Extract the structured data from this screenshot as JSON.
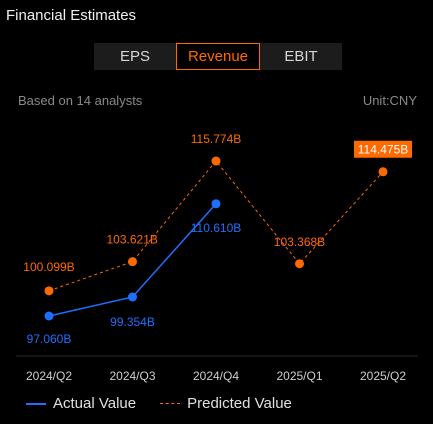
{
  "panel": {
    "title": "Financial Estimates"
  },
  "tabs": [
    {
      "label": "EPS",
      "active": false
    },
    {
      "label": "Revenue",
      "active": true
    },
    {
      "label": "EBIT",
      "active": false
    }
  ],
  "subheader": {
    "analysts": "Based on 14 analysts",
    "unit": "Unit:CNY"
  },
  "colors": {
    "actual": "#1f6fff",
    "predicted": "#ff6a00",
    "background": "#000000",
    "tab_bg": "#1c1c1c",
    "label_bg_highlight": "#ff6a00"
  },
  "chart_data": {
    "type": "line",
    "categories": [
      "2024/Q2",
      "2024/Q3",
      "2024/Q4",
      "2025/Q1",
      "2025/Q2"
    ],
    "series": [
      {
        "name": "Actual Value",
        "style": "solid",
        "values": [
          97.06,
          99.354,
          110.61,
          null,
          null
        ],
        "labels": [
          "97.060B",
          "99.354B",
          "110.610B",
          null,
          null
        ]
      },
      {
        "name": "Predicted Value",
        "style": "dashed",
        "values": [
          100.099,
          103.621,
          115.774,
          103.368,
          114.475
        ],
        "labels": [
          "100.099B",
          "103.621B",
          "115.774B",
          "103.368B",
          "114.475B"
        ]
      }
    ],
    "highlighted_label": "114.475B",
    "grid": false,
    "legend_position": "bottom-left"
  },
  "legend": {
    "actual_label": "Actual Value",
    "predicted_label": "Predicted Value"
  }
}
